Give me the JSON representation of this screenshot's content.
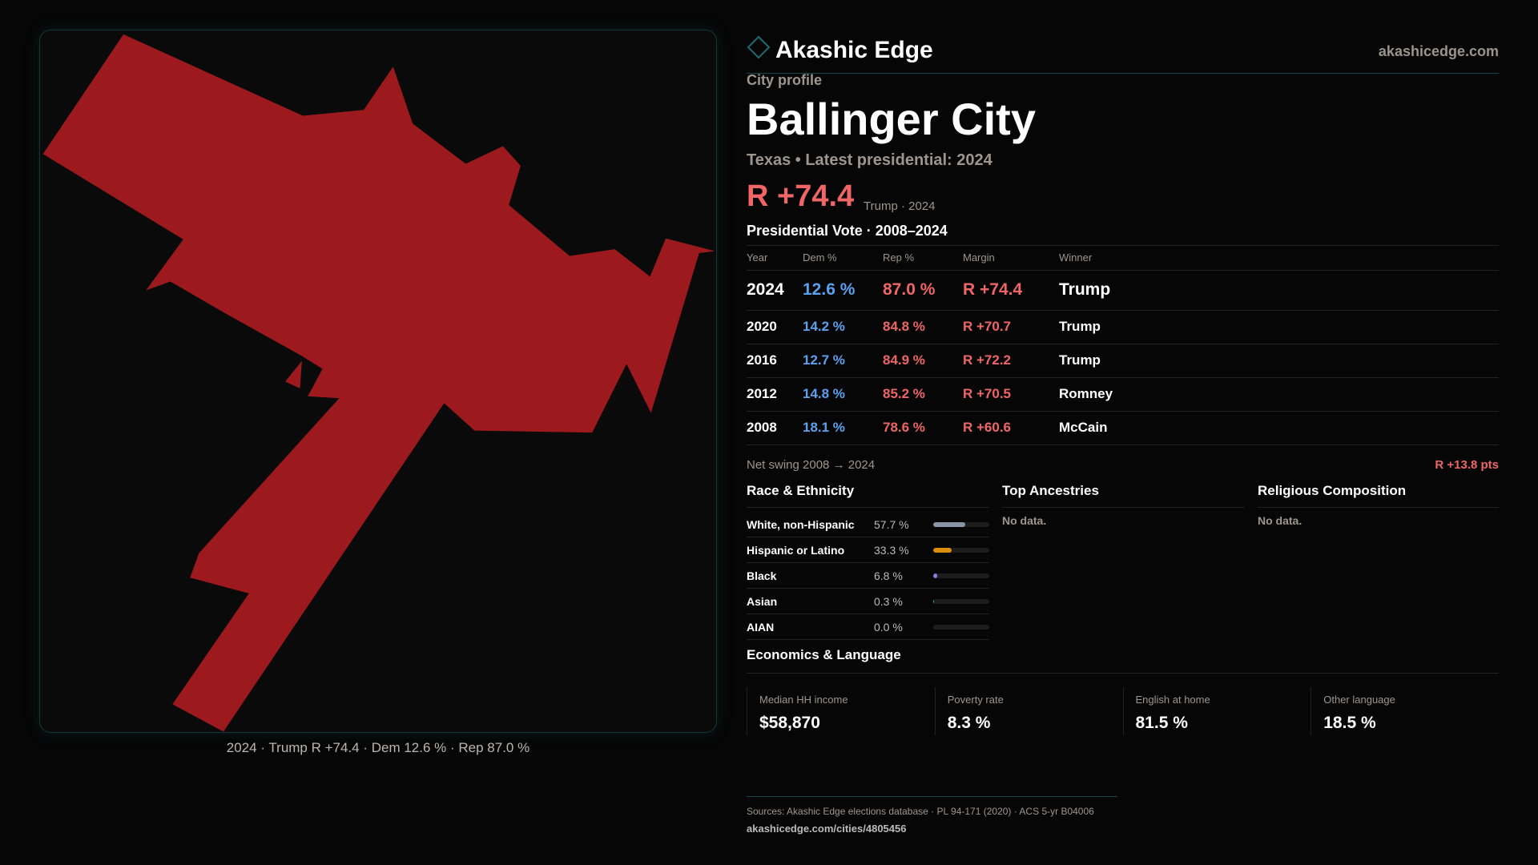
{
  "brand": {
    "name": "Akashic Edge",
    "site": "akashicedge.com",
    "accent": "#1b6a70"
  },
  "profile": {
    "kicker": "City profile",
    "city": "Ballinger City",
    "subtitle": "Texas • Latest presidential: 2024",
    "margin": "R +74.4",
    "margin_note": "Trump · 2024"
  },
  "map": {
    "fill": "#9c1a1d",
    "caption": "2024 · Trump R +74.4 · Dem 12.6 % · Rep 87.0 %"
  },
  "votes": {
    "title": "Presidential Vote · 2008–2024",
    "headers": [
      "Year",
      "Dem %",
      "Rep %",
      "Margin",
      "Winner"
    ],
    "rows": [
      {
        "year": "2024",
        "dem": "12.6 %",
        "rep": "87.0 %",
        "margin": "R +74.4",
        "winner": "Trump"
      },
      {
        "year": "2020",
        "dem": "14.2 %",
        "rep": "84.8 %",
        "margin": "R +70.7",
        "winner": "Trump"
      },
      {
        "year": "2016",
        "dem": "12.7 %",
        "rep": "84.9 %",
        "margin": "R +72.2",
        "winner": "Trump"
      },
      {
        "year": "2012",
        "dem": "14.8 %",
        "rep": "85.2 %",
        "margin": "R +70.5",
        "winner": "Romney"
      },
      {
        "year": "2008",
        "dem": "18.1 %",
        "rep": "78.6 %",
        "margin": "R +60.6",
        "winner": "McCain"
      }
    ]
  },
  "swing": {
    "label": "Net swing 2008 → 2024",
    "value": "R +13.8 pts"
  },
  "race": {
    "title": "Race & Ethnicity",
    "rows": [
      {
        "label": "White, non-Hispanic",
        "value": "57.7 %",
        "pct": 57.7,
        "color": "#8a96a8"
      },
      {
        "label": "Hispanic or Latino",
        "value": "33.3 %",
        "pct": 33.3,
        "color": "#d98e0f"
      },
      {
        "label": "Black",
        "value": "6.8 %",
        "pct": 6.8,
        "color": "#8b7be0"
      },
      {
        "label": "Asian",
        "value": "0.3 %",
        "pct": 0.3,
        "color": "#4fb0a0"
      },
      {
        "label": "AIAN",
        "value": "0.0 %",
        "pct": 0.0,
        "color": "#c06060"
      }
    ]
  },
  "ancestries": {
    "title": "Top Ancestries",
    "empty": "No data."
  },
  "religion": {
    "title": "Religious Composition",
    "empty": "No data."
  },
  "econ": {
    "title": "Economics & Language",
    "tiles": [
      {
        "label": "Median HH income",
        "value": "$58,870"
      },
      {
        "label": "Poverty rate",
        "value": "8.3 %"
      },
      {
        "label": "English at home",
        "value": "81.5 %"
      },
      {
        "label": "Other language",
        "value": "18.5 %"
      }
    ]
  },
  "footer": {
    "sources": "Sources: Akashic Edge elections database · PL 94-171 (2020) · ACS 5-yr B04006",
    "url": "akashicedge.com/cities/4805456"
  }
}
